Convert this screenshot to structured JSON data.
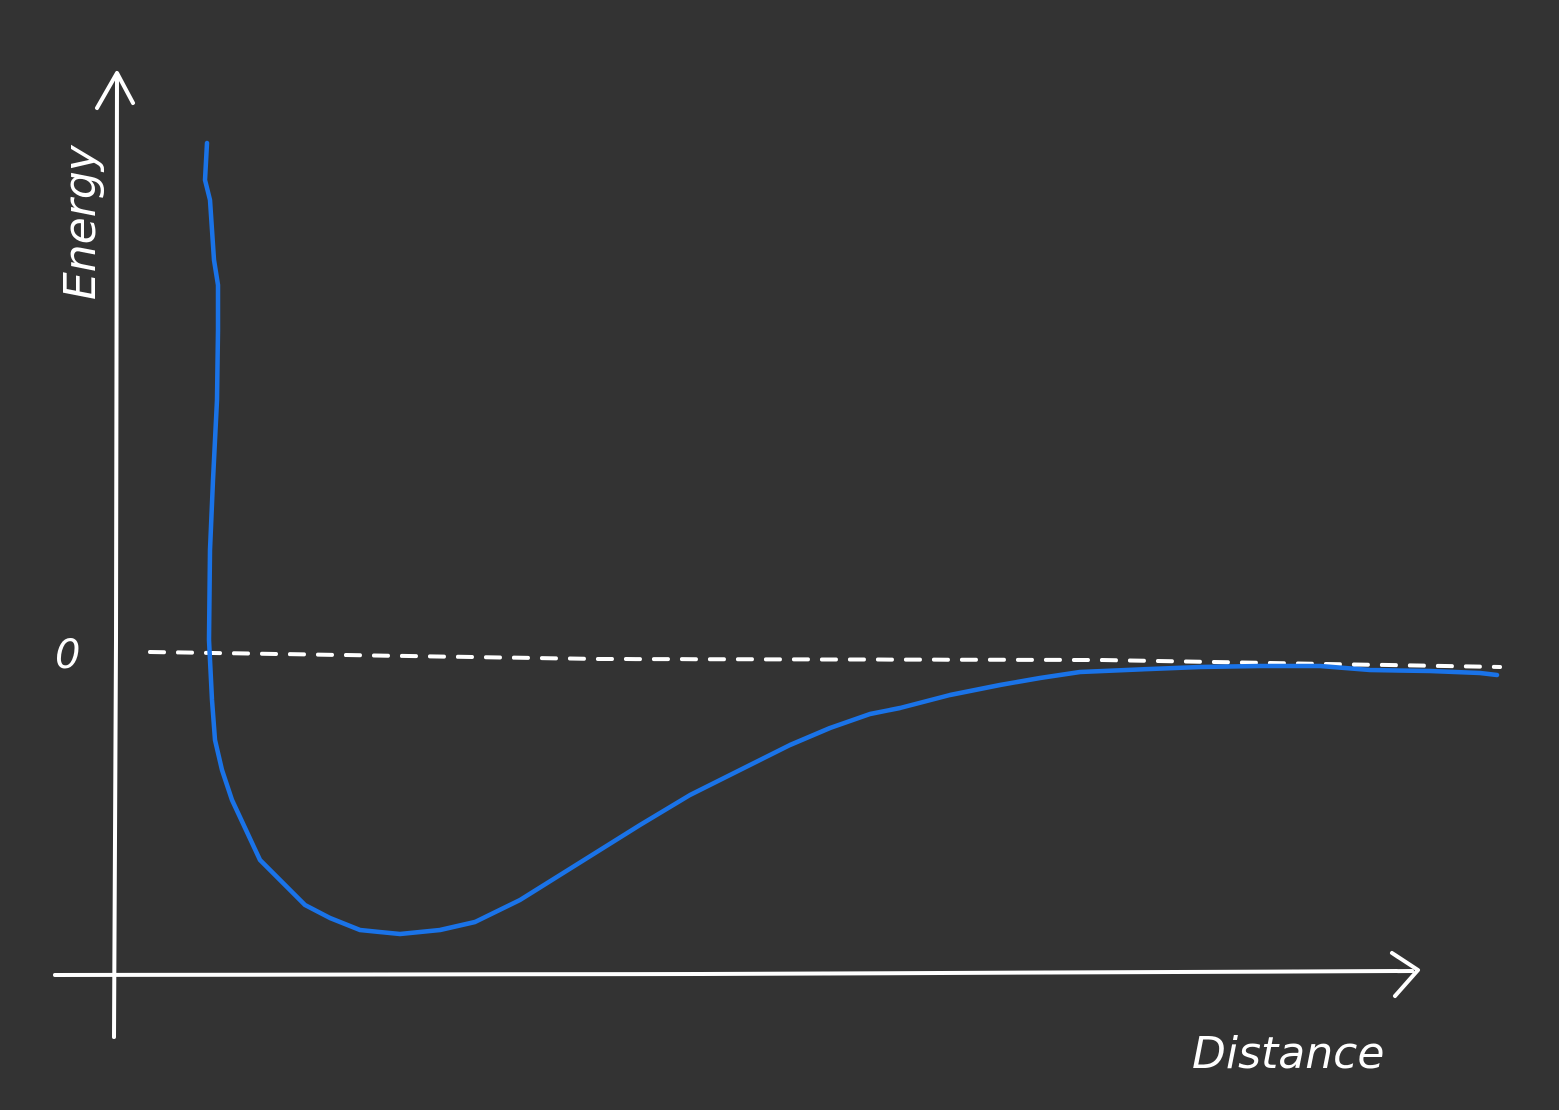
{
  "canvas": {
    "background": "#333333",
    "ink": "#ffffff",
    "curve_color": "#1a73e8"
  },
  "axes": {
    "y_label": "Energy",
    "x_label": "Distance",
    "zero_label": "0"
  }
}
